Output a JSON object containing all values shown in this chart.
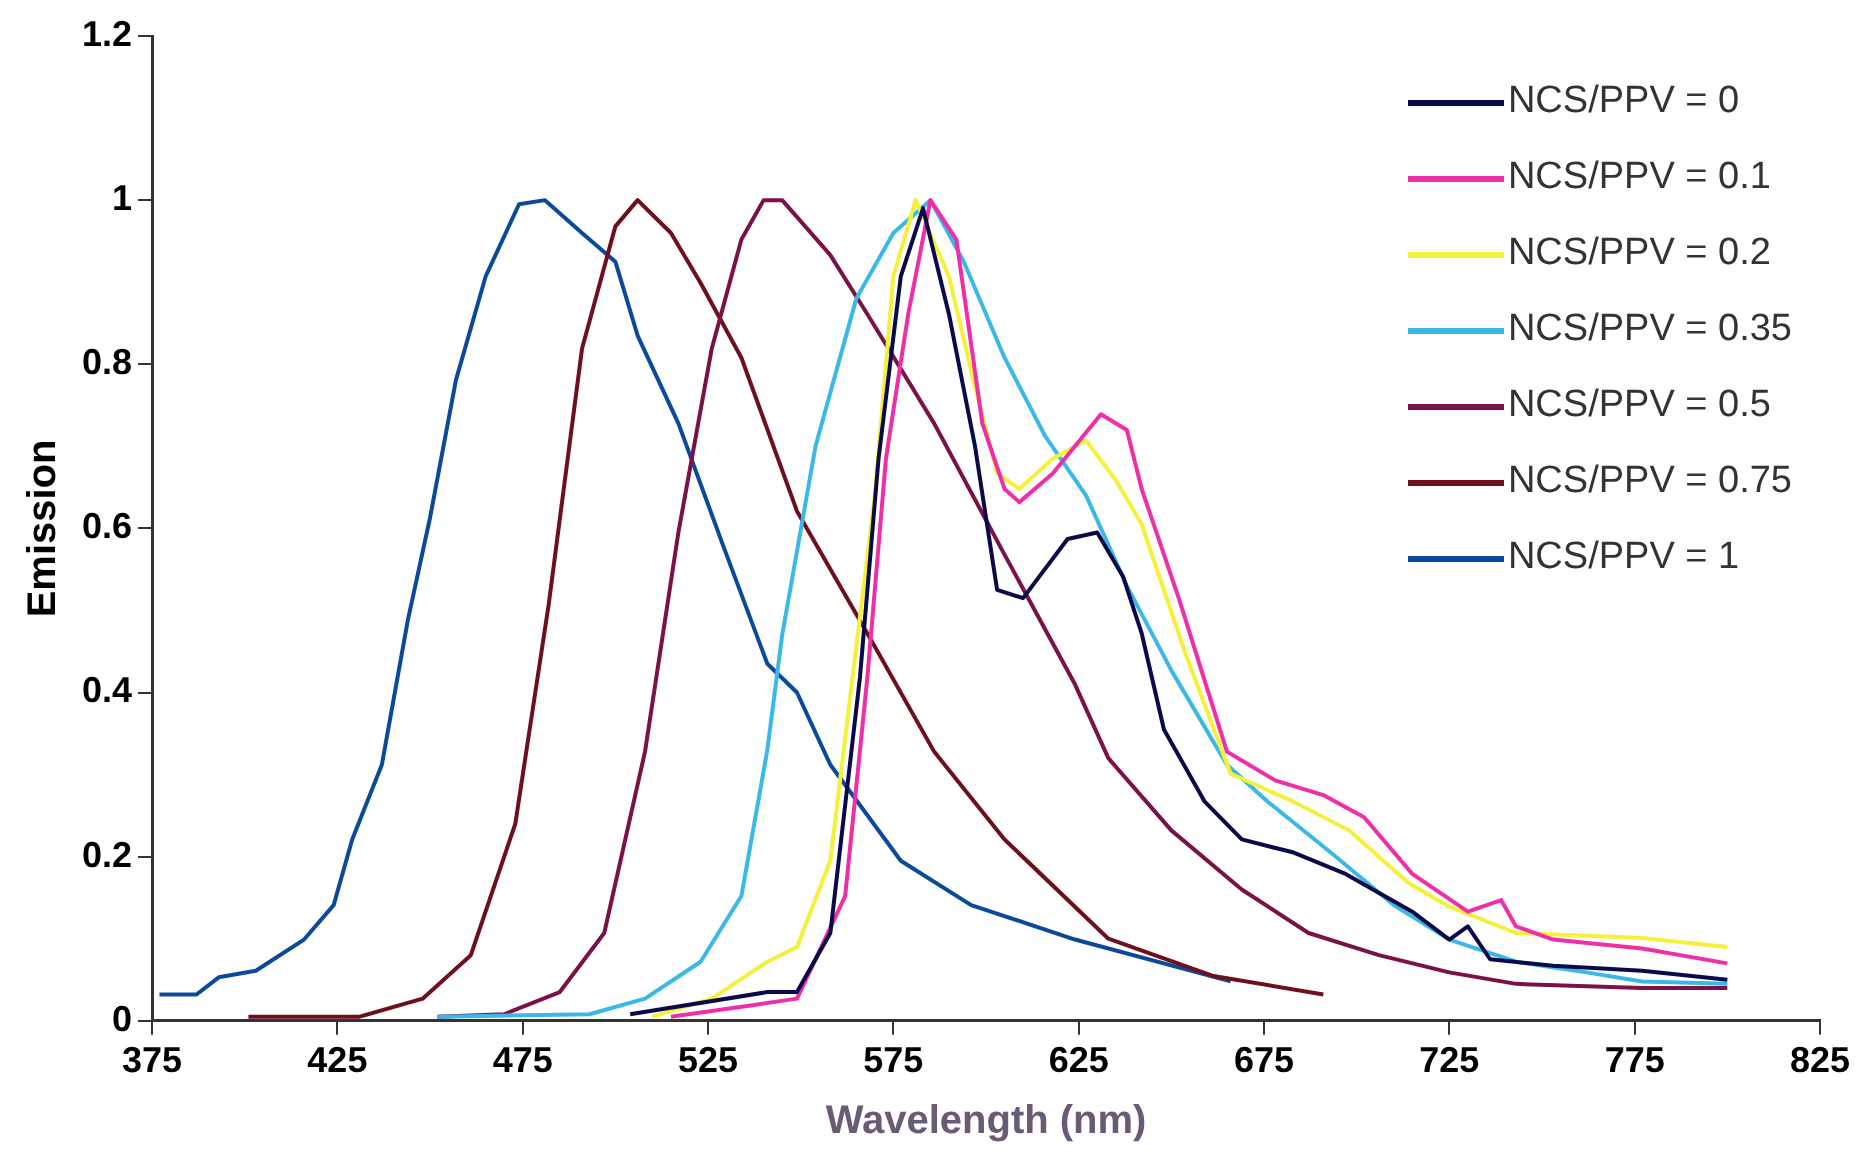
{
  "chart_data": {
    "type": "line",
    "xlabel": "Wavelength (nm)",
    "ylabel": "Emission",
    "xlim": [
      375,
      825
    ],
    "xticks": [
      375,
      425,
      475,
      525,
      575,
      625,
      675,
      725,
      775,
      825
    ],
    "ylim": [
      0,
      1.2
    ],
    "yticks": [
      0,
      0.2,
      0.4,
      0.6,
      0.8,
      1,
      1.2
    ],
    "grid": false,
    "legend": "top right",
    "marker": "none",
    "line_style": "solid",
    "series": [
      {
        "name": "NCS/PPV = 0",
        "color": "#0a0a4a",
        "x": [
          504,
          541,
          549,
          558,
          566,
          571,
          577,
          583,
          590,
          597,
          603,
          610,
          622,
          630,
          637,
          642,
          648,
          659,
          669,
          683,
          697,
          715,
          725,
          730,
          736,
          753,
          777,
          800
        ],
        "values": [
          0.008,
          0.035,
          0.035,
          0.107,
          0.419,
          0.685,
          0.907,
          0.99,
          0.861,
          0.701,
          0.525,
          0.515,
          0.587,
          0.595,
          0.541,
          0.472,
          0.355,
          0.267,
          0.221,
          0.205,
          0.179,
          0.133,
          0.099,
          0.115,
          0.075,
          0.067,
          0.061,
          0.05
        ]
      },
      {
        "name": "NCS/PPV = 0.1",
        "color": "#ee2fa8",
        "x": [
          515,
          537,
          549,
          562,
          568,
          573,
          579,
          585,
          592,
          599,
          605,
          609,
          618,
          631,
          638,
          642,
          652,
          665,
          678,
          691,
          702,
          715,
          730,
          739,
          743,
          753,
          777,
          800
        ],
        "values": [
          0.005,
          0.019,
          0.027,
          0.152,
          0.419,
          0.685,
          0.861,
          1,
          0.952,
          0.728,
          0.648,
          0.632,
          0.667,
          0.739,
          0.72,
          0.648,
          0.515,
          0.328,
          0.293,
          0.275,
          0.248,
          0.179,
          0.133,
          0.147,
          0.115,
          0.099,
          0.088,
          0.07
        ]
      },
      {
        "name": "NCS/PPV = 0.2",
        "color": "#f5f03a",
        "x": [
          510,
          526,
          541,
          549,
          558,
          564,
          570,
          575,
          581,
          590,
          597,
          603,
          609,
          618,
          627,
          635,
          642,
          654,
          666,
          683,
          698,
          714,
          725,
          743,
          777,
          800
        ],
        "values": [
          0.005,
          0.027,
          0.072,
          0.09,
          0.195,
          0.419,
          0.64,
          0.907,
          1,
          0.907,
          0.773,
          0.667,
          0.648,
          0.685,
          0.707,
          0.659,
          0.605,
          0.445,
          0.301,
          0.267,
          0.232,
          0.168,
          0.139,
          0.107,
          0.101,
          0.09
        ]
      },
      {
        "name": "NCS/PPV = 0.35",
        "color": "#3ab8e8",
        "x": [
          452,
          493,
          508,
          523,
          534,
          541,
          545,
          554,
          565,
          575,
          585,
          594,
          605,
          616,
          627,
          638,
          650,
          665,
          676,
          693,
          710,
          725,
          743,
          762,
          777,
          800
        ],
        "values": [
          0.005,
          0.008,
          0.027,
          0.072,
          0.152,
          0.33,
          0.47,
          0.7,
          0.88,
          0.96,
          1,
          0.925,
          0.808,
          0.712,
          0.64,
          0.53,
          0.427,
          0.312,
          0.267,
          0.205,
          0.141,
          0.099,
          0.072,
          0.059,
          0.048,
          0.045
        ]
      },
      {
        "name": "NCS/PPV = 0.5",
        "color": "#7a1248",
        "x": [
          452,
          470,
          485,
          497,
          508,
          517,
          526,
          534,
          540,
          545,
          558,
          568,
          586,
          605,
          624,
          633,
          650,
          669,
          687,
          706,
          725,
          743,
          777,
          800
        ],
        "values": [
          0.005,
          0.008,
          0.035,
          0.107,
          0.328,
          0.595,
          0.819,
          0.952,
          1,
          1,
          0.933,
          0.861,
          0.728,
          0.568,
          0.41,
          0.32,
          0.232,
          0.16,
          0.107,
          0.08,
          0.059,
          0.045,
          0.04,
          0.04
        ]
      },
      {
        "name": "NCS/PPV = 0.75",
        "color": "#6e0f1e",
        "x": [
          401,
          431,
          448,
          461,
          473,
          482,
          491,
          500,
          506,
          515,
          523,
          534,
          549,
          568,
          586,
          605,
          633,
          661,
          691
        ],
        "values": [
          0.005,
          0.005,
          0.027,
          0.08,
          0.24,
          0.507,
          0.819,
          0.968,
          1,
          0.96,
          0.899,
          0.808,
          0.621,
          0.472,
          0.328,
          0.221,
          0.1,
          0.055,
          0.032
        ]
      },
      {
        "name": "NCS/PPV = 1",
        "color": "#0b4a9a",
        "x": [
          377,
          387,
          393,
          403,
          416,
          424,
          429,
          437,
          444,
          450,
          457,
          465,
          474,
          481,
          491,
          500,
          506,
          517,
          529,
          541,
          549,
          558,
          577,
          596,
          624,
          666
        ],
        "values": [
          0.032,
          0.032,
          0.053,
          0.061,
          0.099,
          0.141,
          0.221,
          0.312,
          0.488,
          0.613,
          0.781,
          0.907,
          0.995,
          1,
          0.96,
          0.925,
          0.835,
          0.728,
          0.58,
          0.435,
          0.4,
          0.312,
          0.195,
          0.141,
          0.099,
          0.048
        ]
      }
    ]
  }
}
